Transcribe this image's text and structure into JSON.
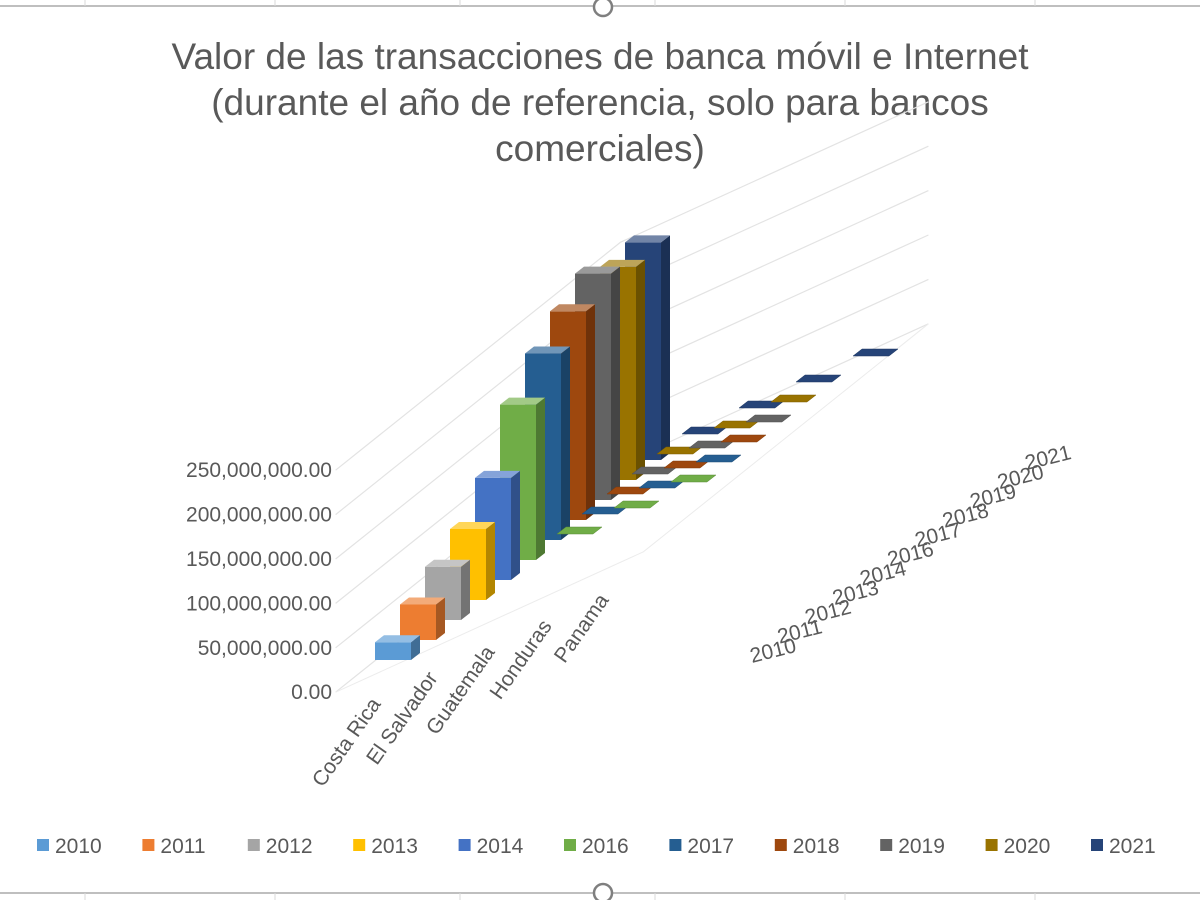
{
  "chart_data": {
    "type": "bar",
    "title": "Valor de las transacciones de banca móvil e Internet (durante el año de referencia, solo para bancos comerciales)",
    "title_lines": [
      "Valor de las transacciones de banca móvil e Internet",
      "(durante el año de referencia, solo para bancos",
      "comerciales)"
    ],
    "categories": [
      "Costa Rica",
      "El Salvador",
      "Guatemala",
      "Honduras",
      "Panama"
    ],
    "y_tick_labels": [
      "0.00",
      "50,000,000.00",
      "100,000,000.00",
      "150,000,000.00",
      "200,000,000.00",
      "250,000,000.00"
    ],
    "ylim": [
      0,
      250000000
    ],
    "depth_labels": [
      "2010",
      "2011",
      "2012",
      "2013",
      "2014",
      "2016",
      "2017",
      "2018",
      "2019",
      "2020",
      "2021"
    ],
    "series": [
      {
        "name": "2010",
        "color": "#5B9BD5",
        "values": [
          20000000,
          0,
          0,
          0,
          0
        ]
      },
      {
        "name": "2011",
        "color": "#ED7D31",
        "values": [
          40000000,
          0,
          0,
          0,
          0
        ]
      },
      {
        "name": "2012",
        "color": "#A5A5A5",
        "values": [
          60000000,
          0,
          0,
          0,
          0
        ]
      },
      {
        "name": "2013",
        "color": "#FFC000",
        "values": [
          80000000,
          0,
          0,
          0,
          0
        ]
      },
      {
        "name": "2014",
        "color": "#4472C4",
        "values": [
          115000000,
          0,
          0,
          0,
          0
        ]
      },
      {
        "name": "2016",
        "color": "#70AD47",
        "values": [
          175000000,
          1000000,
          1000000,
          1000000,
          0
        ]
      },
      {
        "name": "2017",
        "color": "#255E91",
        "values": [
          210000000,
          1000000,
          1000000,
          1000000,
          0
        ]
      },
      {
        "name": "2018",
        "color": "#9E480E",
        "values": [
          235000000,
          1000000,
          1000000,
          1000000,
          0
        ]
      },
      {
        "name": "2019",
        "color": "#636363",
        "values": [
          255000000,
          1000000,
          1000000,
          1000000,
          0
        ]
      },
      {
        "name": "2020",
        "color": "#997300",
        "values": [
          240000000,
          1000000,
          1000000,
          1000000,
          0
        ]
      },
      {
        "name": "2021",
        "color": "#264478",
        "values": [
          245000000,
          1000000,
          1000000,
          2000000,
          1000000
        ]
      }
    ],
    "grid": true,
    "legend_position": "bottom"
  }
}
